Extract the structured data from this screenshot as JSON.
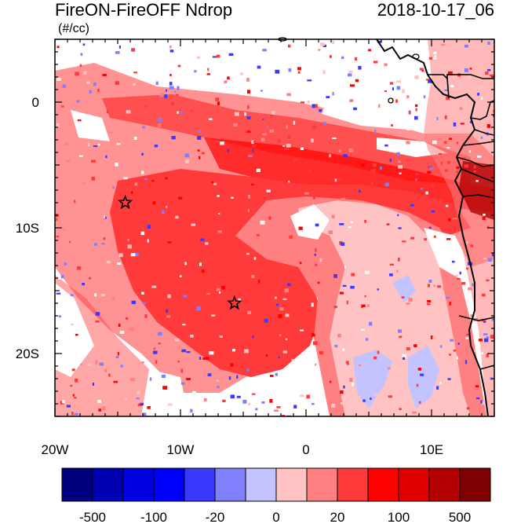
{
  "title_left": "FireON-FireOFF Ndrop",
  "title_right": "2018-10-17_06",
  "units": "(#/cc)",
  "map": {
    "lon_range": [
      -20,
      15
    ],
    "lat_range": [
      -25,
      5
    ],
    "lon_ticks": [
      {
        "lon": -20,
        "label": "20W"
      },
      {
        "lon": -10,
        "label": "10W"
      },
      {
        "lon": 0,
        "label": "0"
      },
      {
        "lon": 10,
        "label": "10E"
      }
    ],
    "lat_ticks": [
      {
        "lat": 0,
        "label": "0"
      },
      {
        "lat": -10,
        "label": "10S"
      },
      {
        "lat": -20,
        "label": "20S"
      }
    ],
    "markers": [
      {
        "lon": -14.4,
        "lat": -8.0,
        "symbol": "star"
      },
      {
        "lon": -5.7,
        "lat": -16.0,
        "symbol": "star"
      }
    ]
  },
  "colorbar": {
    "colors": [
      "#00007f",
      "#0000b3",
      "#0000e0",
      "#0000ff",
      "#3a3aff",
      "#8080ff",
      "#c3c3ff",
      "#ffc3c3",
      "#ff8080",
      "#ff3a3a",
      "#ff0000",
      "#e00000",
      "#b30000",
      "#7f0000"
    ],
    "labels": [
      {
        "boundary": 1,
        "label": "-500"
      },
      {
        "boundary": 3,
        "label": "-100"
      },
      {
        "boundary": 5,
        "label": "-20"
      },
      {
        "boundary": 7,
        "label": "0"
      },
      {
        "boundary": 9,
        "label": "20"
      },
      {
        "boundary": 11,
        "label": "100"
      },
      {
        "boundary": 13,
        "label": "500"
      }
    ]
  }
}
